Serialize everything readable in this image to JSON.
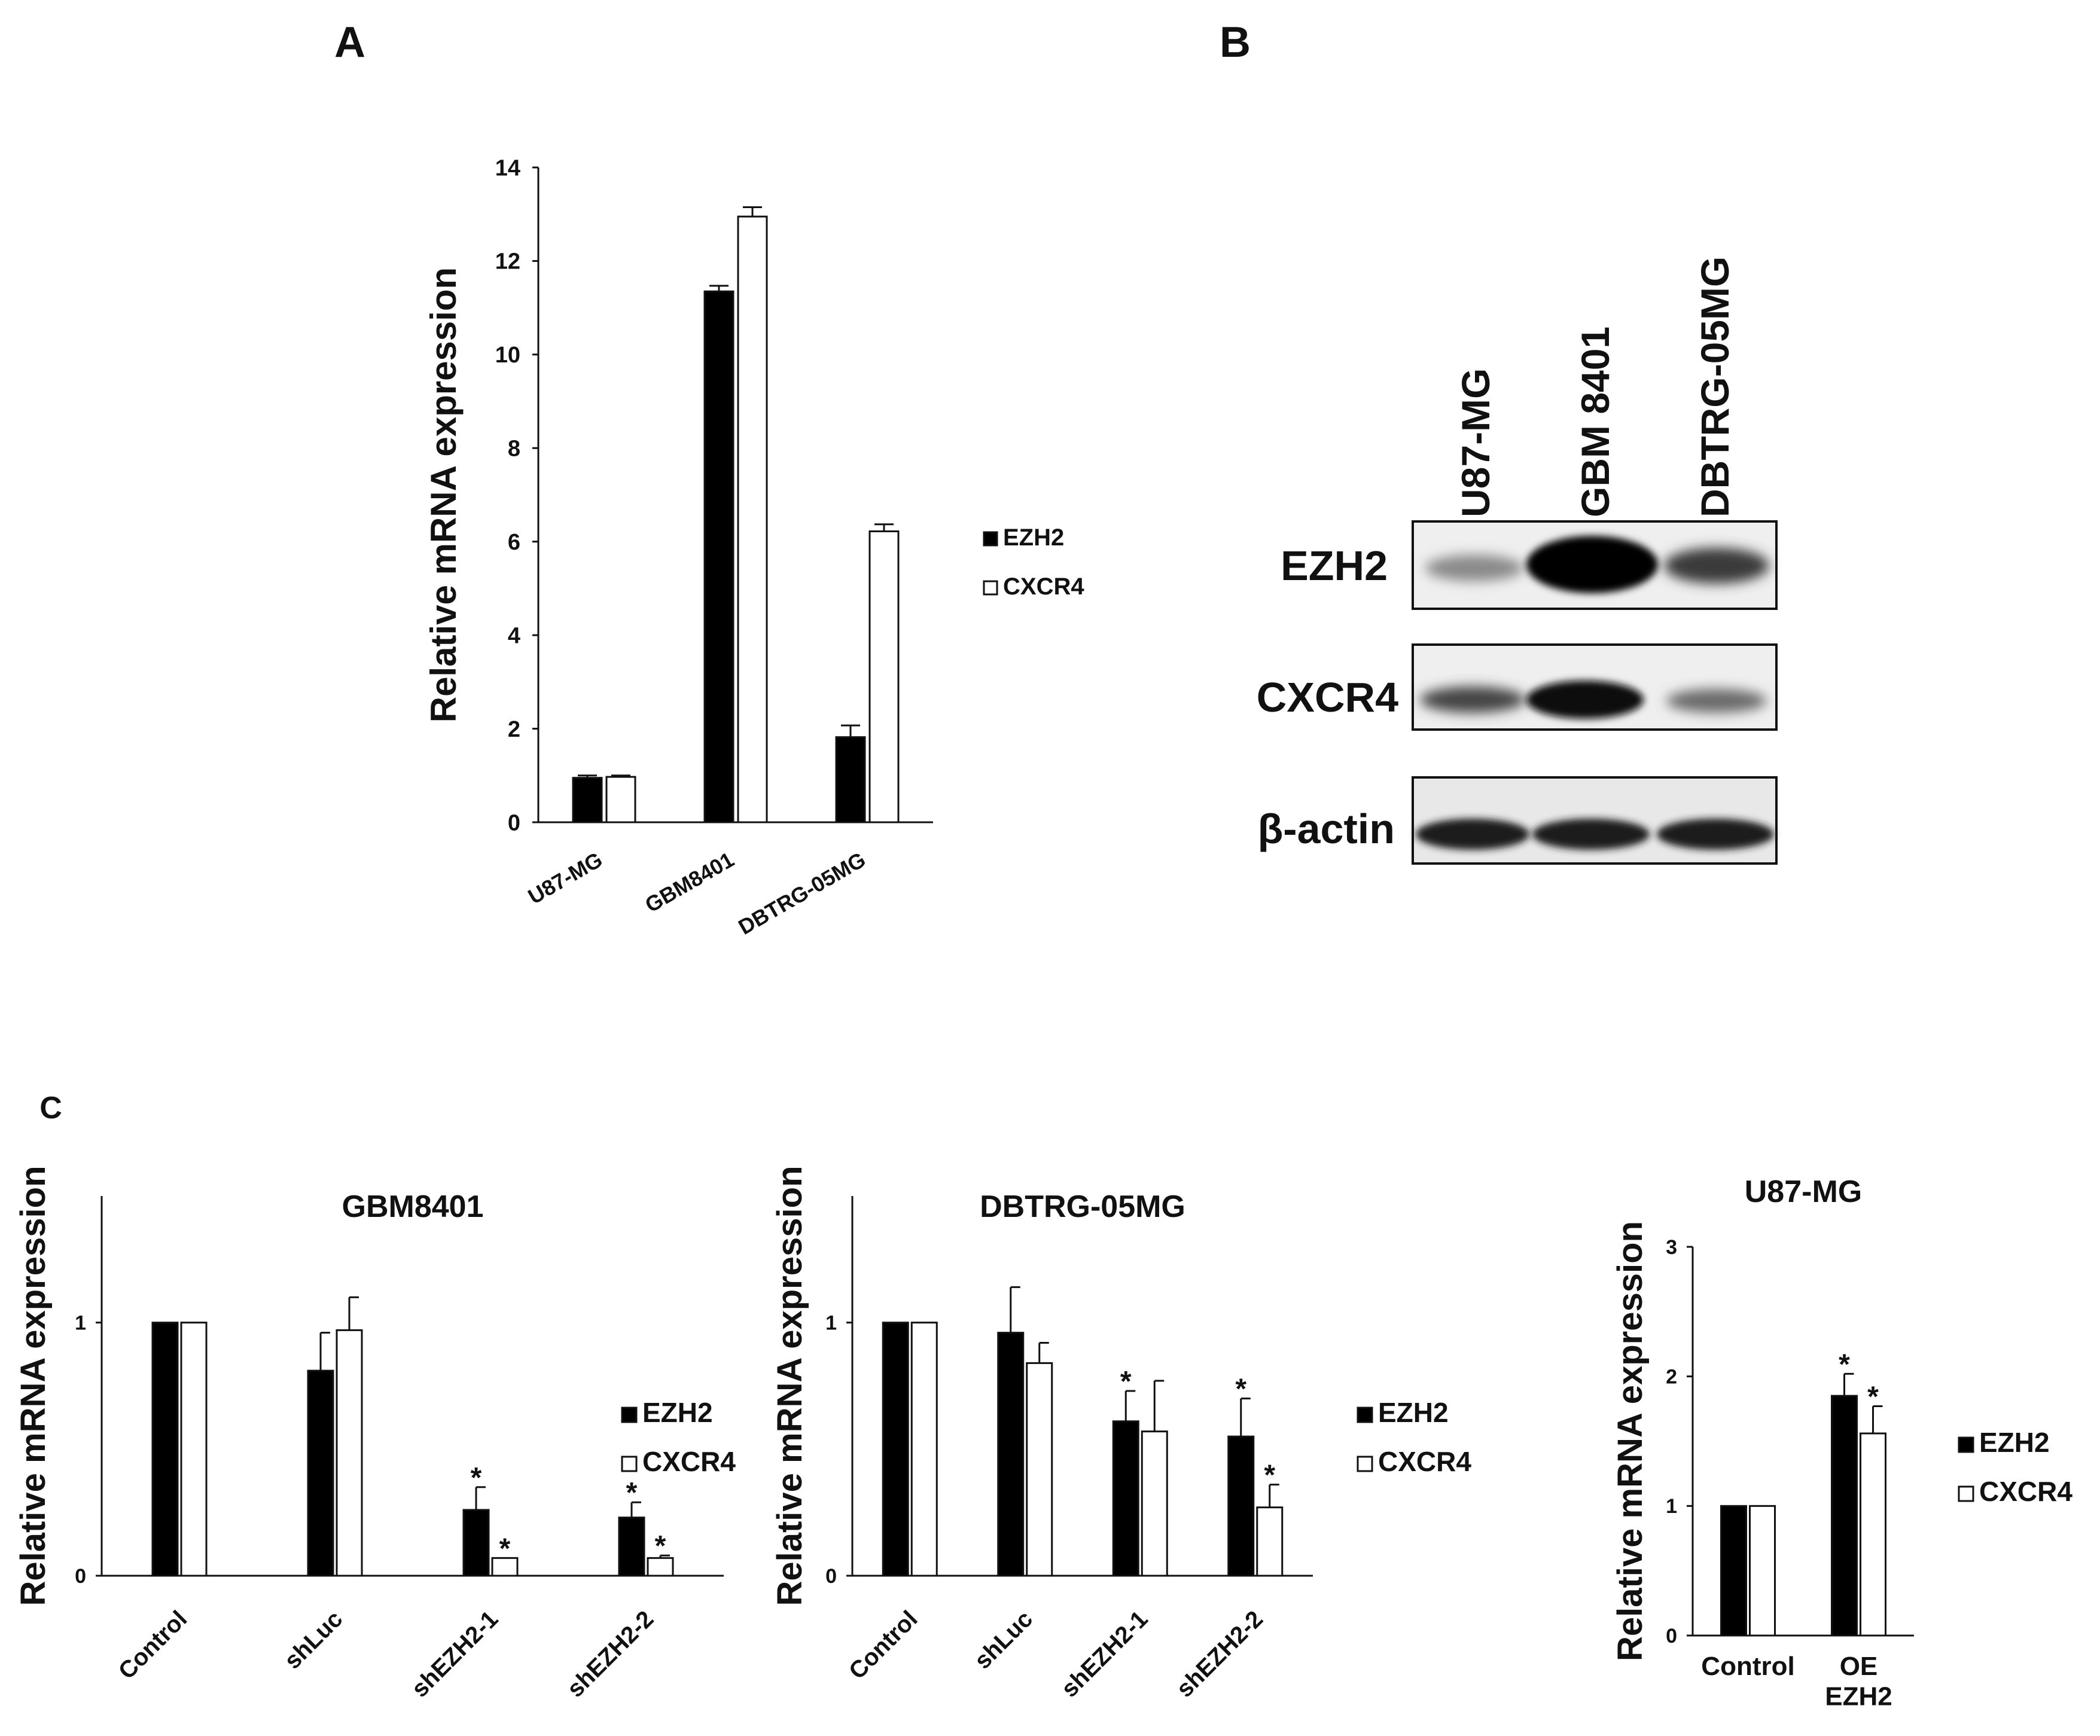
{
  "panel_labels": {
    "a": "A",
    "b": "B",
    "c": "C"
  },
  "western_blot": {
    "lanes": [
      "U87-MG",
      "GBM 8401",
      "DBTRG-05MG"
    ],
    "rows": [
      "EZH2",
      "CXCR4",
      "β-actin"
    ]
  },
  "chart_data": [
    {
      "type": "bar",
      "ylabel": "Relative mRNA expression",
      "categories": [
        "U87-MG",
        "GBM8401",
        "DBTRG-05MG"
      ],
      "series": [
        {
          "name": "EZH2",
          "values": [
            0.95,
            11.35,
            1.82
          ],
          "errors": [
            0.05,
            0.12,
            0.25
          ]
        },
        {
          "name": "CXCR4",
          "values": [
            0.97,
            12.95,
            6.22
          ],
          "errors": [
            0.03,
            0.2,
            0.15
          ]
        }
      ],
      "ylim": [
        0,
        14
      ],
      "yticks": [
        0,
        2,
        4,
        6,
        8,
        10,
        12,
        14
      ],
      "legend": "right",
      "colors": {
        "EZH2": "#000000",
        "CXCR4": "#ffffff"
      }
    },
    {
      "type": "bar",
      "title": "GBM8401",
      "ylabel": "Relative mRNA expression",
      "categories": [
        "Control",
        "shLuc",
        "shEZH2-1",
        "shEZH2-2"
      ],
      "series": [
        {
          "name": "EZH2",
          "values": [
            1.0,
            0.81,
            0.26,
            0.23
          ],
          "errors": [
            0.0,
            0.15,
            0.09,
            0.06
          ],
          "significant": [
            false,
            false,
            true,
            true
          ]
        },
        {
          "name": "CXCR4",
          "values": [
            1.0,
            0.97,
            0.07,
            0.07
          ],
          "errors": [
            0.0,
            0.13,
            0.0,
            0.01
          ],
          "significant": [
            false,
            false,
            true,
            true
          ]
        }
      ],
      "ylim": [
        0,
        1.5
      ],
      "yticks": [
        0,
        1
      ],
      "legend": "right"
    },
    {
      "type": "bar",
      "title": "DBTRG-05MG",
      "ylabel": "Relative mRNA expression",
      "categories": [
        "Control",
        "shLuc",
        "shEZH2-1",
        "shEZH2-2"
      ],
      "series": [
        {
          "name": "EZH2",
          "values": [
            1.0,
            0.96,
            0.61,
            0.55
          ],
          "errors": [
            0.0,
            0.18,
            0.12,
            0.15
          ],
          "significant": [
            false,
            false,
            true,
            true
          ]
        },
        {
          "name": "CXCR4",
          "values": [
            1.0,
            0.84,
            0.57,
            0.27
          ],
          "errors": [
            0.0,
            0.08,
            0.2,
            0.09
          ],
          "significant": [
            false,
            false,
            false,
            true
          ]
        }
      ],
      "ylim": [
        0,
        1.5
      ],
      "yticks": [
        0,
        1
      ],
      "legend": "right"
    },
    {
      "type": "bar",
      "title": "U87-MG",
      "ylabel": "Relative mRNA expression",
      "categories": [
        "Control",
        "OE\nEZH2"
      ],
      "series": [
        {
          "name": "EZH2",
          "values": [
            1.0,
            1.85
          ],
          "errors": [
            0.0,
            0.17
          ],
          "significant": [
            false,
            true
          ]
        },
        {
          "name": "CXCR4",
          "values": [
            1.0,
            1.56
          ],
          "errors": [
            0.0,
            0.21
          ],
          "significant": [
            false,
            true
          ]
        }
      ],
      "ylim": [
        0,
        3
      ],
      "yticks": [
        0,
        1,
        2,
        3
      ],
      "legend": "right"
    }
  ]
}
